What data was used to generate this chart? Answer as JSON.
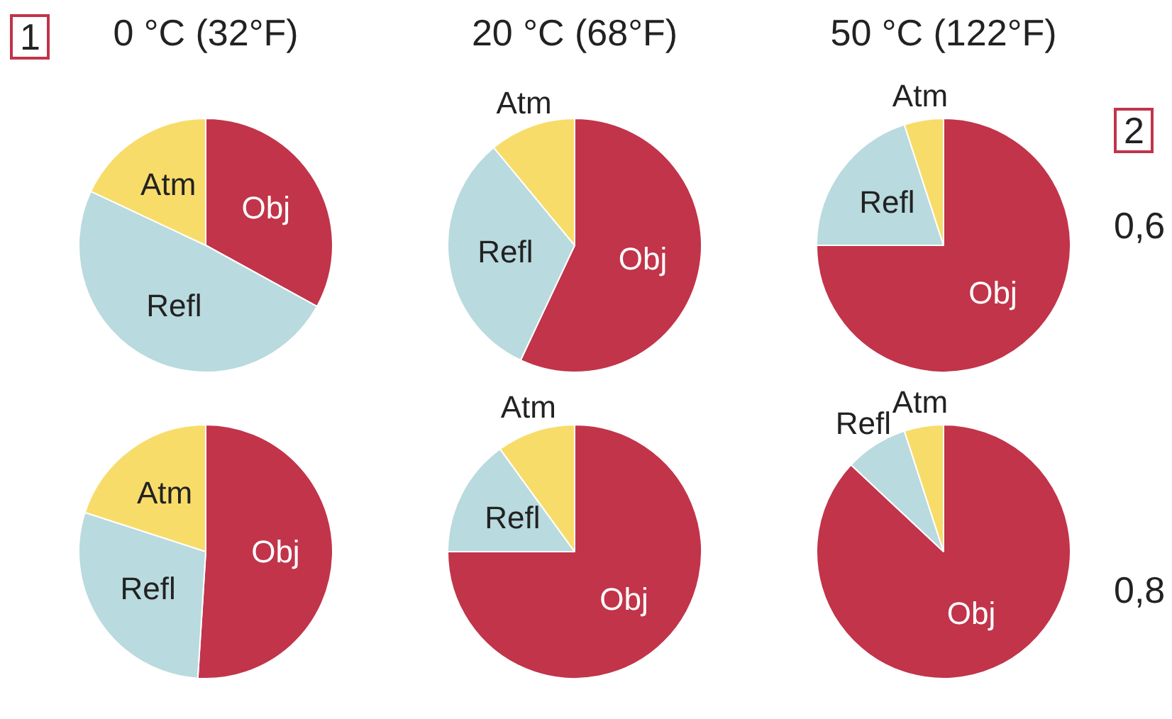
{
  "chart_data": [
    {
      "type": "pie",
      "title": "0 °C (32°F)",
      "categories": [
        "Obj",
        "Refl",
        "Atm"
      ],
      "values": [
        33,
        49,
        18
      ],
      "colors": [
        "#c1344a",
        "#b9dade",
        "#f8dc6a"
      ],
      "legend": false,
      "annotations": [
        "1"
      ]
    },
    {
      "type": "pie",
      "title": "20 °C (68°F)",
      "categories": [
        "Obj",
        "Refl",
        "Atm"
      ],
      "values": [
        57,
        32,
        11
      ],
      "colors": [
        "#c1344a",
        "#b9dade",
        "#f8dc6a"
      ],
      "legend": false
    },
    {
      "type": "pie",
      "title": "50 °C (122°F)",
      "categories": [
        "Obj",
        "Refl",
        "Atm"
      ],
      "values": [
        75,
        20,
        5
      ],
      "colors": [
        "#c1344a",
        "#b9dade",
        "#f8dc6a"
      ],
      "legend": false,
      "annotations": [
        "2",
        "0,6"
      ]
    },
    {
      "type": "pie",
      "categories": [
        "Obj",
        "Refl",
        "Atm"
      ],
      "values": [
        51,
        29,
        20
      ],
      "colors": [
        "#c1344a",
        "#b9dade",
        "#f8dc6a"
      ],
      "legend": false
    },
    {
      "type": "pie",
      "categories": [
        "Obj",
        "Refl",
        "Atm"
      ],
      "values": [
        75,
        15,
        10
      ],
      "colors": [
        "#c1344a",
        "#b9dade",
        "#f8dc6a"
      ],
      "legend": false
    },
    {
      "type": "pie",
      "categories": [
        "Obj",
        "Refl",
        "Atm"
      ],
      "values": [
        87,
        8,
        5
      ],
      "colors": [
        "#c1344a",
        "#b9dade",
        "#f8dc6a"
      ],
      "legend": false,
      "annotations": [
        "0,8"
      ]
    }
  ]
}
